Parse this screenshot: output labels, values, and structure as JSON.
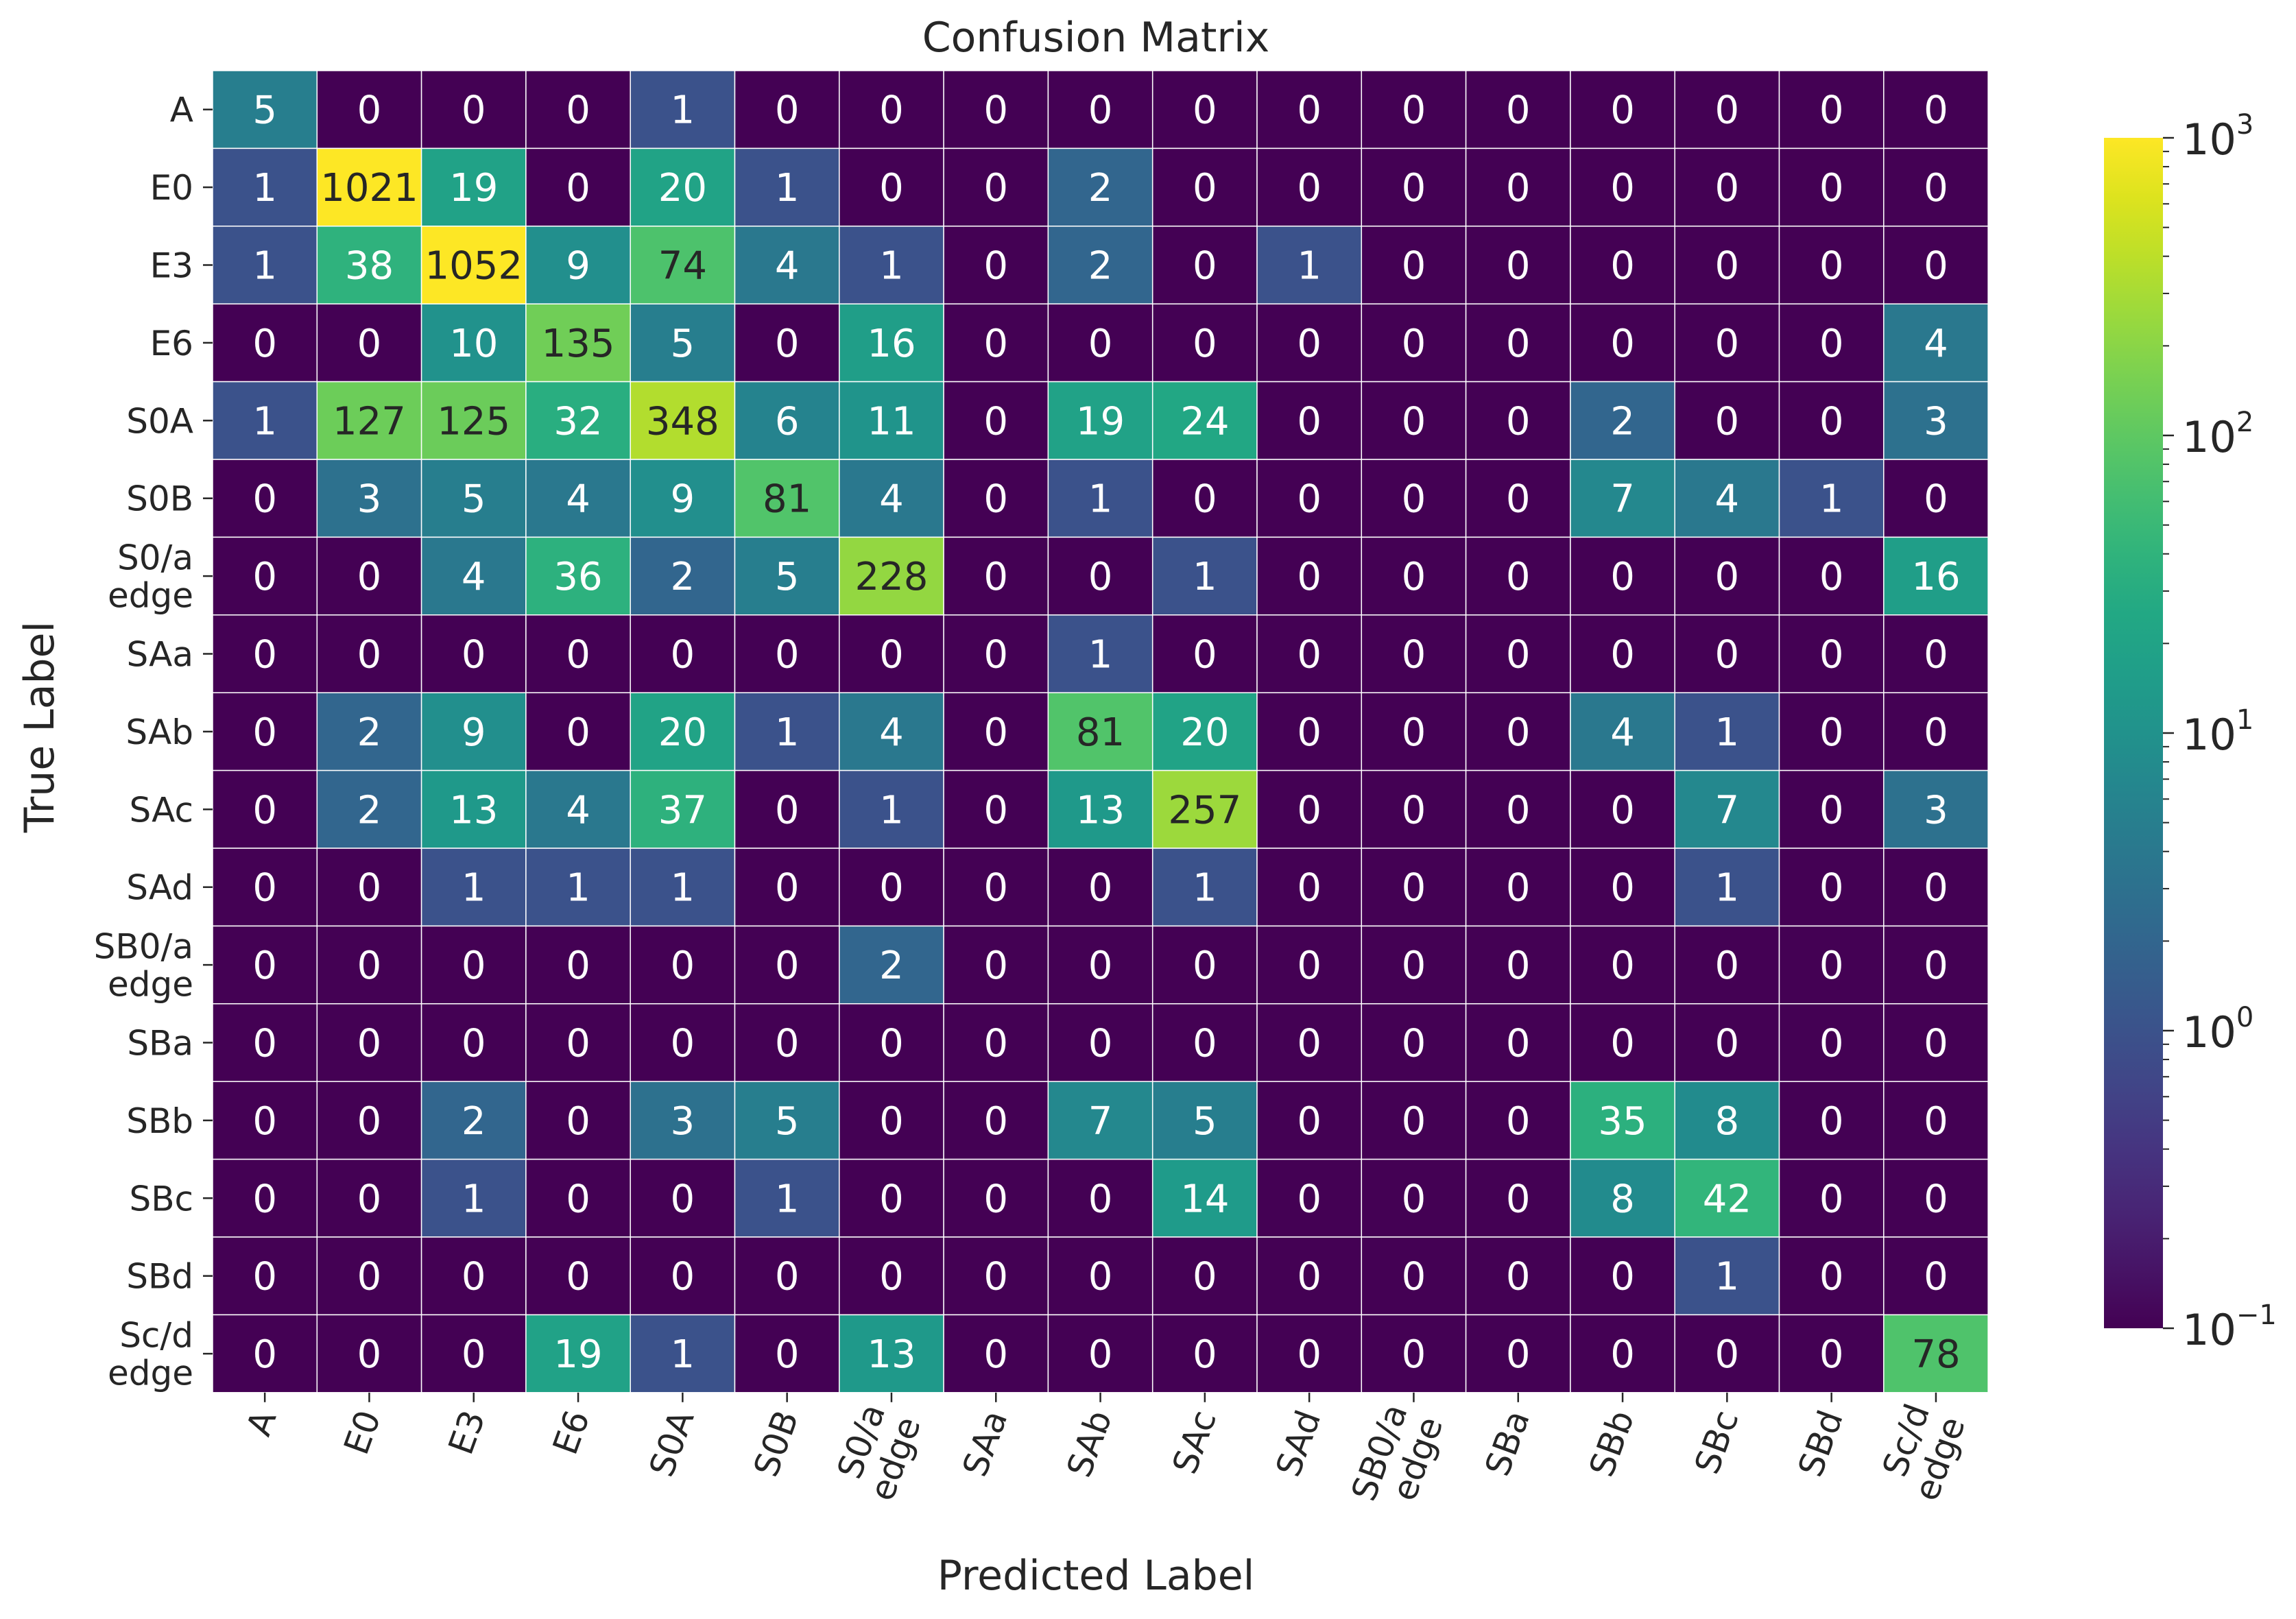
{
  "chart_data": {
    "type": "heatmap",
    "title": "Confusion Matrix",
    "xlabel": "Predicted Label",
    "ylabel": "True Label",
    "labels": [
      "A",
      "E0",
      "E3",
      "E6",
      "S0A",
      "S0B",
      "S0/a\nedge",
      "SAa",
      "SAb",
      "SAc",
      "SAd",
      "SB0/a\nedge",
      "SBa",
      "SBb",
      "SBc",
      "SBd",
      "Sc/d\nedge"
    ],
    "matrix": [
      [
        5,
        0,
        0,
        0,
        1,
        0,
        0,
        0,
        0,
        0,
        0,
        0,
        0,
        0,
        0,
        0,
        0
      ],
      [
        1,
        1021,
        19,
        0,
        20,
        1,
        0,
        0,
        2,
        0,
        0,
        0,
        0,
        0,
        0,
        0,
        0
      ],
      [
        1,
        38,
        1052,
        9,
        74,
        4,
        1,
        0,
        2,
        0,
        1,
        0,
        0,
        0,
        0,
        0,
        0
      ],
      [
        0,
        0,
        10,
        135,
        5,
        0,
        16,
        0,
        0,
        0,
        0,
        0,
        0,
        0,
        0,
        0,
        4
      ],
      [
        1,
        127,
        125,
        32,
        348,
        6,
        11,
        0,
        19,
        24,
        0,
        0,
        0,
        2,
        0,
        0,
        3
      ],
      [
        0,
        3,
        5,
        4,
        9,
        81,
        4,
        0,
        1,
        0,
        0,
        0,
        0,
        7,
        4,
        1,
        0
      ],
      [
        0,
        0,
        4,
        36,
        2,
        5,
        228,
        0,
        0,
        1,
        0,
        0,
        0,
        0,
        0,
        0,
        16
      ],
      [
        0,
        0,
        0,
        0,
        0,
        0,
        0,
        0,
        1,
        0,
        0,
        0,
        0,
        0,
        0,
        0,
        0
      ],
      [
        0,
        2,
        9,
        0,
        20,
        1,
        4,
        0,
        81,
        20,
        0,
        0,
        0,
        4,
        1,
        0,
        0
      ],
      [
        0,
        2,
        13,
        4,
        37,
        0,
        1,
        0,
        13,
        257,
        0,
        0,
        0,
        0,
        7,
        0,
        3
      ],
      [
        0,
        0,
        1,
        1,
        1,
        0,
        0,
        0,
        0,
        1,
        0,
        0,
        0,
        0,
        1,
        0,
        0
      ],
      [
        0,
        0,
        0,
        0,
        0,
        0,
        2,
        0,
        0,
        0,
        0,
        0,
        0,
        0,
        0,
        0,
        0
      ],
      [
        0,
        0,
        0,
        0,
        0,
        0,
        0,
        0,
        0,
        0,
        0,
        0,
        0,
        0,
        0,
        0,
        0
      ],
      [
        0,
        0,
        2,
        0,
        3,
        5,
        0,
        0,
        7,
        5,
        0,
        0,
        0,
        35,
        8,
        0,
        0
      ],
      [
        0,
        0,
        1,
        0,
        0,
        1,
        0,
        0,
        0,
        14,
        0,
        0,
        0,
        8,
        42,
        0,
        0
      ],
      [
        0,
        0,
        0,
        0,
        0,
        0,
        0,
        0,
        0,
        0,
        0,
        0,
        0,
        0,
        1,
        0,
        0
      ],
      [
        0,
        0,
        0,
        19,
        1,
        0,
        13,
        0,
        0,
        0,
        0,
        0,
        0,
        0,
        0,
        0,
        78
      ]
    ],
    "colorscale": "viridis",
    "color_scale_type": "log",
    "color_range": [
      0.1,
      1000
    ],
    "colorbar_ticks": [
      {
        "value": 1000,
        "base": "10",
        "exp": "3"
      },
      {
        "value": 100,
        "base": "10",
        "exp": "2"
      },
      {
        "value": 10,
        "base": "10",
        "exp": "1"
      },
      {
        "value": 1,
        "base": "10",
        "exp": "0"
      },
      {
        "value": 0.1,
        "base": "10",
        "exp": "−1"
      }
    ],
    "colorbar_placement": "right",
    "xtick_rotation_deg": 70,
    "grid": false
  }
}
